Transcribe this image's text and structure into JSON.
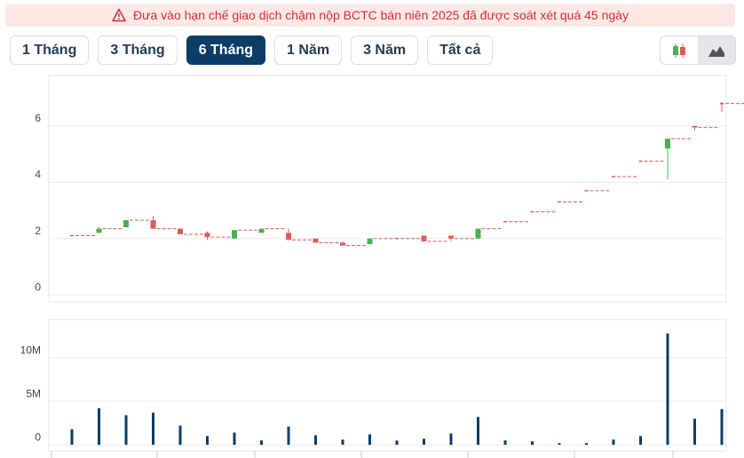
{
  "banner": "Đưa vào hạn chế giao dịch chậm nộp BCTC bán niên 2025 đã được soát xét quá 45 ngày",
  "range_buttons": [
    "1 Tháng",
    "3 Tháng",
    "6 Tháng",
    "1 Năm",
    "3 Năm",
    "Tất cả"
  ],
  "active_button": 2,
  "chart_data": [
    {
      "type": "candlestick",
      "open": [
        2.1,
        2.2,
        2.4,
        2.65,
        2.35,
        2.2,
        2.0,
        2.2,
        2.2,
        2.0,
        1.85,
        1.8,
        2.0,
        2.1,
        2.1,
        2.0,
        2.6,
        2.95,
        3.3,
        3.7,
        4.2,
        4.75,
        5.2,
        6.0,
        6.8
      ],
      "high": [
        2.1,
        2.4,
        2.65,
        2.8,
        2.35,
        2.25,
        2.3,
        2.35,
        2.35,
        2.0,
        1.9,
        2.0,
        2.0,
        2.1,
        2.1,
        2.35,
        2.6,
        2.95,
        3.3,
        3.7,
        4.2,
        4.75,
        5.55,
        6.0,
        6.85
      ],
      "low": [
        2.1,
        2.2,
        2.4,
        2.35,
        2.15,
        1.95,
        2.0,
        2.2,
        1.95,
        1.85,
        1.75,
        1.8,
        2.0,
        1.9,
        1.9,
        2.0,
        2.6,
        2.95,
        3.3,
        3.7,
        4.2,
        4.75,
        4.1,
        5.85,
        6.5
      ],
      "close": [
        2.1,
        2.35,
        2.65,
        2.35,
        2.15,
        2.05,
        2.3,
        2.35,
        1.95,
        1.85,
        1.75,
        2.0,
        2.0,
        1.9,
        2.0,
        2.35,
        2.6,
        2.95,
        3.3,
        3.7,
        4.2,
        4.75,
        5.55,
        5.95,
        6.8
      ],
      "ylim": [
        -0.25,
        7.8
      ],
      "yticks": [
        0,
        2,
        4,
        6
      ],
      "grid": true,
      "up_color": "#4caf50",
      "down_color": "#e05a5a"
    },
    {
      "type": "bar",
      "values": [
        1800000,
        4200000,
        3400000,
        3700000,
        2200000,
        1000000,
        1400000,
        500000,
        2100000,
        1100000,
        600000,
        1200000,
        500000,
        700000,
        1300000,
        3200000,
        500000,
        400000,
        200000,
        200000,
        600000,
        1000000,
        12800000,
        3000000,
        4100000
      ],
      "ylim": [
        -700000,
        14400000
      ],
      "yticks": [
        0,
        {
          "value": 5000000,
          "label": "5M"
        },
        {
          "value": 10000000,
          "label": "10M"
        }
      ],
      "grid": true,
      "color": "#0b3d66"
    }
  ]
}
